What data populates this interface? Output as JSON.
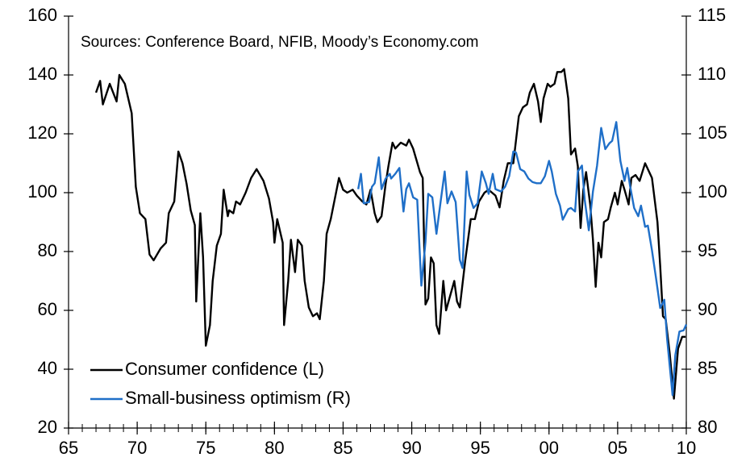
{
  "chart_data": {
    "type": "line",
    "annotation": "Sources: Conference Board, NFIB, Moody’s Economy.com",
    "xlim": [
      1965,
      2010
    ],
    "xticks": [
      {
        "value": 1965,
        "label": "65"
      },
      {
        "value": 1970,
        "label": "70"
      },
      {
        "value": 1975,
        "label": "75"
      },
      {
        "value": 1980,
        "label": "80"
      },
      {
        "value": 1985,
        "label": "85"
      },
      {
        "value": 1990,
        "label": "90"
      },
      {
        "value": 1995,
        "label": "95"
      },
      {
        "value": 2000,
        "label": "00"
      },
      {
        "value": 2005,
        "label": "05"
      },
      {
        "value": 2010,
        "label": "10"
      }
    ],
    "xminorticks": [
      1965,
      1966,
      1967,
      1968,
      1969,
      1970,
      1971,
      1972,
      1973,
      1974,
      1975,
      1976,
      1977,
      1978,
      1979,
      1980,
      1981,
      1982,
      1983,
      1984,
      1985,
      1986,
      1987,
      1988,
      1989,
      1990,
      1991,
      1992,
      1993,
      1994,
      1995,
      1996,
      1997,
      1998,
      1999,
      2000,
      2001,
      2002,
      2003,
      2004,
      2005,
      2006,
      2007,
      2008,
      2009,
      2010
    ],
    "ylim": [
      20,
      160
    ],
    "yticks": [
      20,
      40,
      60,
      80,
      100,
      120,
      140,
      160
    ],
    "y2lim": [
      80,
      115
    ],
    "y2ticks": [
      80,
      85,
      90,
      95,
      100,
      105,
      110,
      115
    ],
    "legend": "lower left",
    "series": [
      {
        "name": "Consumer confidence (L)",
        "color": "#000000",
        "axis": "y",
        "x": [
          1967.0,
          1967.3,
          1967.5,
          1968.0,
          1968.5,
          1968.7,
          1969.1,
          1969.6,
          1969.9,
          1970.2,
          1970.6,
          1970.9,
          1971.2,
          1971.7,
          1972.1,
          1972.3,
          1972.7,
          1973.0,
          1973.3,
          1973.6,
          1973.9,
          1974.2,
          1974.3,
          1974.6,
          1974.8,
          1975.0,
          1975.3,
          1975.5,
          1975.8,
          1976.1,
          1976.3,
          1976.6,
          1976.7,
          1977.0,
          1977.2,
          1977.5,
          1977.9,
          1978.3,
          1978.7,
          1979.2,
          1979.6,
          1979.9,
          1980.0,
          1980.2,
          1980.6,
          1980.7,
          1981.0,
          1981.2,
          1981.5,
          1981.7,
          1982.0,
          1982.2,
          1982.5,
          1982.8,
          1983.1,
          1983.3,
          1983.6,
          1983.8,
          1984.1,
          1984.4,
          1984.7,
          1985.0,
          1985.3,
          1985.7,
          1986.0,
          1986.4,
          1986.7,
          1987.0,
          1987.3,
          1987.5,
          1987.8,
          1988.1,
          1988.3,
          1988.6,
          1988.8,
          1989.2,
          1989.6,
          1989.8,
          1990.1,
          1990.6,
          1990.8,
          1991.0,
          1991.2,
          1991.4,
          1991.6,
          1991.8,
          1992.0,
          1992.3,
          1992.5,
          1992.8,
          1993.1,
          1993.3,
          1993.5,
          1993.9,
          1994.1,
          1994.3,
          1994.6,
          1994.9,
          1995.3,
          1995.6,
          1996.1,
          1996.4,
          1996.7,
          1997.0,
          1997.4,
          1997.8,
          1998.1,
          1998.4,
          1998.6,
          1998.9,
          1999.2,
          1999.4,
          1999.6,
          1999.9,
          2000.1,
          2000.4,
          2000.6,
          2000.9,
          2001.1,
          2001.4,
          2001.6,
          2001.9,
          2002.1,
          2002.3,
          2002.5,
          2002.7,
          2003.0,
          2003.2,
          2003.4,
          2003.6,
          2003.8,
          2004.0,
          2004.3,
          2004.5,
          2004.8,
          2005.0,
          2005.3,
          2005.5,
          2005.8,
          2006.0,
          2006.3,
          2006.6,
          2006.8,
          2007.0,
          2007.5,
          2007.9,
          2008.1,
          2008.3,
          2008.5,
          2008.8,
          2009.1,
          2009.4,
          2009.7,
          2009.95
        ],
        "values": [
          134,
          138,
          130,
          137,
          131,
          140,
          137,
          127,
          102,
          93,
          91,
          79,
          77,
          81,
          83,
          93,
          97,
          114,
          110,
          103,
          94,
          89,
          63,
          93,
          78,
          48,
          55,
          70,
          82,
          86,
          101,
          92,
          94,
          93,
          97,
          96,
          100,
          105,
          108,
          104,
          98,
          90,
          83,
          91,
          83,
          55,
          70,
          84,
          73,
          84,
          82,
          70,
          61,
          58,
          59,
          57,
          70,
          86,
          91,
          98,
          105,
          101,
          100,
          101,
          99,
          97,
          96,
          101,
          93,
          90,
          92,
          103,
          109,
          117,
          115,
          117,
          116,
          118,
          115,
          107,
          105,
          62,
          64,
          78,
          76,
          55,
          52,
          70,
          60,
          65,
          70,
          63,
          61,
          77,
          84,
          91,
          91,
          97,
          100,
          101,
          99,
          95,
          104,
          110,
          110,
          126,
          129,
          130,
          134,
          137,
          131,
          124,
          132,
          137,
          136,
          137,
          141,
          141,
          142,
          132,
          113,
          115,
          109,
          88,
          101,
          107,
          96,
          84,
          68,
          83,
          78,
          90,
          91,
          95,
          100,
          96,
          104,
          101,
          96,
          105,
          106,
          104,
          107,
          110,
          105,
          90,
          75,
          58,
          57,
          45,
          30,
          47,
          51,
          51
        ]
      },
      {
        "name": "Small-business optimism (R)",
        "color": "#1f6fc8",
        "axis": "y2",
        "x": [
          1986.1,
          1986.3,
          1986.5,
          1986.9,
          1987.1,
          1987.3,
          1987.6,
          1987.8,
          1988.1,
          1988.4,
          1988.5,
          1988.8,
          1989.1,
          1989.4,
          1989.6,
          1989.8,
          1990.1,
          1990.4,
          1990.7,
          1991.0,
          1991.2,
          1991.5,
          1991.8,
          1992.1,
          1992.4,
          1992.6,
          1992.9,
          1993.2,
          1993.5,
          1993.7,
          1994.0,
          1994.2,
          1994.5,
          1994.8,
          1995.1,
          1995.4,
          1995.6,
          1995.9,
          1996.1,
          1996.5,
          1996.8,
          1997.1,
          1997.4,
          1997.6,
          1997.9,
          1998.2,
          1998.5,
          1998.8,
          1999.1,
          1999.4,
          1999.7,
          2000.0,
          2000.2,
          2000.5,
          2000.8,
          2001.0,
          2001.4,
          2001.6,
          2001.9,
          2002.1,
          2002.4,
          2002.6,
          2002.9,
          2003.2,
          2003.5,
          2003.8,
          2004.1,
          2004.4,
          2004.6,
          2004.9,
          2005.2,
          2005.5,
          2005.7,
          2005.9,
          2006.2,
          2006.5,
          2006.7,
          2007.0,
          2007.2,
          2007.5,
          2007.8,
          2008.1,
          2008.4,
          2008.6,
          2009.0,
          2009.2,
          2009.5,
          2009.8,
          2010.0
        ],
        "values": [
          100.3,
          101.6,
          99.1,
          99.2,
          100.5,
          100.8,
          103,
          100.3,
          101.2,
          101.6,
          101.2,
          101.6,
          102.1,
          98.4,
          100.3,
          100.8,
          99.6,
          99.4,
          92.1,
          95.8,
          99.9,
          99.6,
          96.5,
          99.2,
          101.8,
          99.1,
          100.1,
          99.2,
          94.3,
          93.6,
          101.8,
          99.8,
          98.7,
          99.1,
          101.8,
          100.8,
          99.9,
          101.6,
          100.3,
          100.1,
          100.5,
          101.4,
          103.5,
          103.4,
          102,
          101.8,
          101.2,
          100.9,
          100.8,
          100.8,
          101.4,
          102.7,
          101.8,
          99.9,
          98.9,
          97.7,
          98.6,
          98.7,
          98.4,
          101.8,
          102.3,
          99.4,
          96.8,
          100.1,
          102.3,
          105.5,
          103.7,
          104.2,
          104.4,
          106,
          102.7,
          101,
          102.1,
          100.6,
          98.7,
          98,
          98.9,
          97.1,
          97.2,
          95.1,
          92.7,
          90.2,
          90.9,
          87.6,
          82.8,
          86.2,
          88.2,
          88.3,
          88.8
        ]
      }
    ]
  }
}
